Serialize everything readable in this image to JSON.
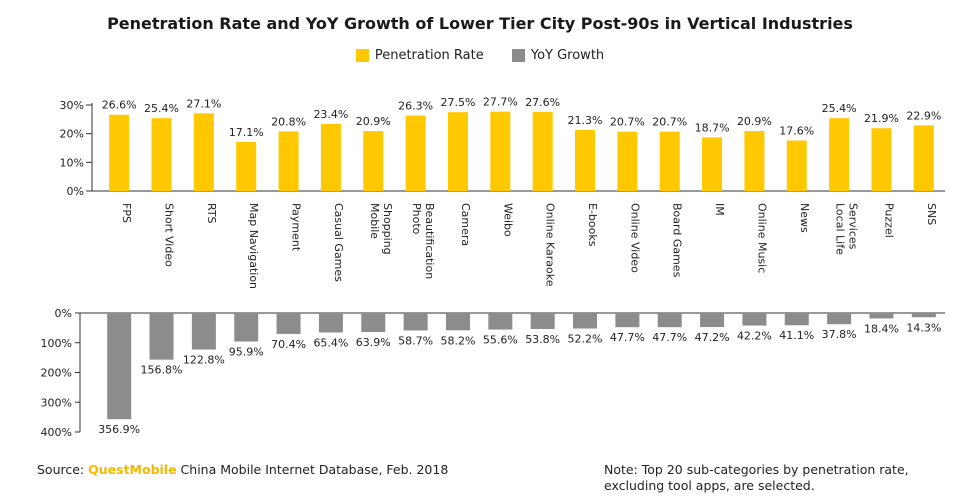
{
  "chart_data": {
    "type": "bar",
    "title": "Penetration Rate and YoY Growth of Lower Tier City Post-90s in Vertical Industries",
    "categories": [
      "FPS",
      "Short Video",
      "RTS",
      "Map Navigation",
      "Payment",
      "Casual Games",
      "Mobile Shopping",
      "Photo Beautification",
      "Camera",
      "Weibo",
      "Online Karaoke",
      "E-books",
      "Online Video",
      "Board Games",
      "IM",
      "Online Music",
      "News",
      "Local Life Services",
      "Puzzel",
      "SNS"
    ],
    "category_lines": [
      [
        "FPS"
      ],
      [
        "Short Video"
      ],
      [
        "RTS"
      ],
      [
        "Map Navigation"
      ],
      [
        "Payment"
      ],
      [
        "Casual Games"
      ],
      [
        "Mobile",
        "Shopping"
      ],
      [
        "Photo",
        "Beautification"
      ],
      [
        "Camera"
      ],
      [
        "Weibo"
      ],
      [
        "Online Karaoke"
      ],
      [
        "E-books"
      ],
      [
        "Online Video"
      ],
      [
        "Board Games"
      ],
      [
        "IM"
      ],
      [
        "Online Music"
      ],
      [
        "News"
      ],
      [
        "Local Life",
        "Services"
      ],
      [
        "Puzzel"
      ],
      [
        "SNS"
      ]
    ],
    "series": [
      {
        "name": "Penetration Rate",
        "color": "#ffc800",
        "values": [
          26.6,
          25.4,
          27.1,
          17.1,
          20.8,
          23.4,
          20.9,
          26.3,
          27.5,
          27.7,
          27.6,
          21.3,
          20.7,
          20.7,
          18.7,
          20.9,
          17.6,
          25.4,
          21.9,
          22.9
        ],
        "labels": [
          "26.6%",
          "25.4%",
          "27.1%",
          "17.1%",
          "20.8%",
          "23.4%",
          "20.9%",
          "26.3%",
          "27.5%",
          "27.7%",
          "27.6%",
          "21.3%",
          "20.7%",
          "20.7%",
          "18.7%",
          "20.9%",
          "17.6%",
          "25.4%",
          "21.9%",
          "22.9%"
        ],
        "ylim": [
          0,
          30
        ],
        "yticks": [
          "0%",
          "10%",
          "20%",
          "30%"
        ]
      },
      {
        "name": "YoY Growth",
        "color": "#8c8c8c",
        "values": [
          356.9,
          156.8,
          122.8,
          95.9,
          70.4,
          65.4,
          63.9,
          58.7,
          58.2,
          55.6,
          53.8,
          52.2,
          47.7,
          47.7,
          47.2,
          42.2,
          41.1,
          37.8,
          18.4,
          14.3
        ],
        "labels": [
          "356.9%",
          "156.8%",
          "122.8%",
          "95.9%",
          "70.4%",
          "65.4%",
          "63.9%",
          "58.7%",
          "58.2%",
          "55.6%",
          "53.8%",
          "52.2%",
          "47.7%",
          "47.7%",
          "47.2%",
          "42.2%",
          "41.1%",
          "37.8%",
          "18.4%",
          "14.3%"
        ],
        "ylim": [
          0,
          400
        ],
        "yticks": [
          "0%",
          "100%",
          "200%",
          "300%",
          "400%"
        ],
        "direction": "downward"
      }
    ],
    "legend": [
      "Penetration Rate",
      "YoY Growth"
    ],
    "legend_position": "top-center"
  },
  "footer": {
    "source_prefix": "Source: ",
    "source_brand": "QuestMobile",
    "source_suffix": " China Mobile Internet Database, Feb. 2018",
    "note": "Note: Top 20 sub-categories by penetration rate, excluding tool apps, are selected."
  }
}
